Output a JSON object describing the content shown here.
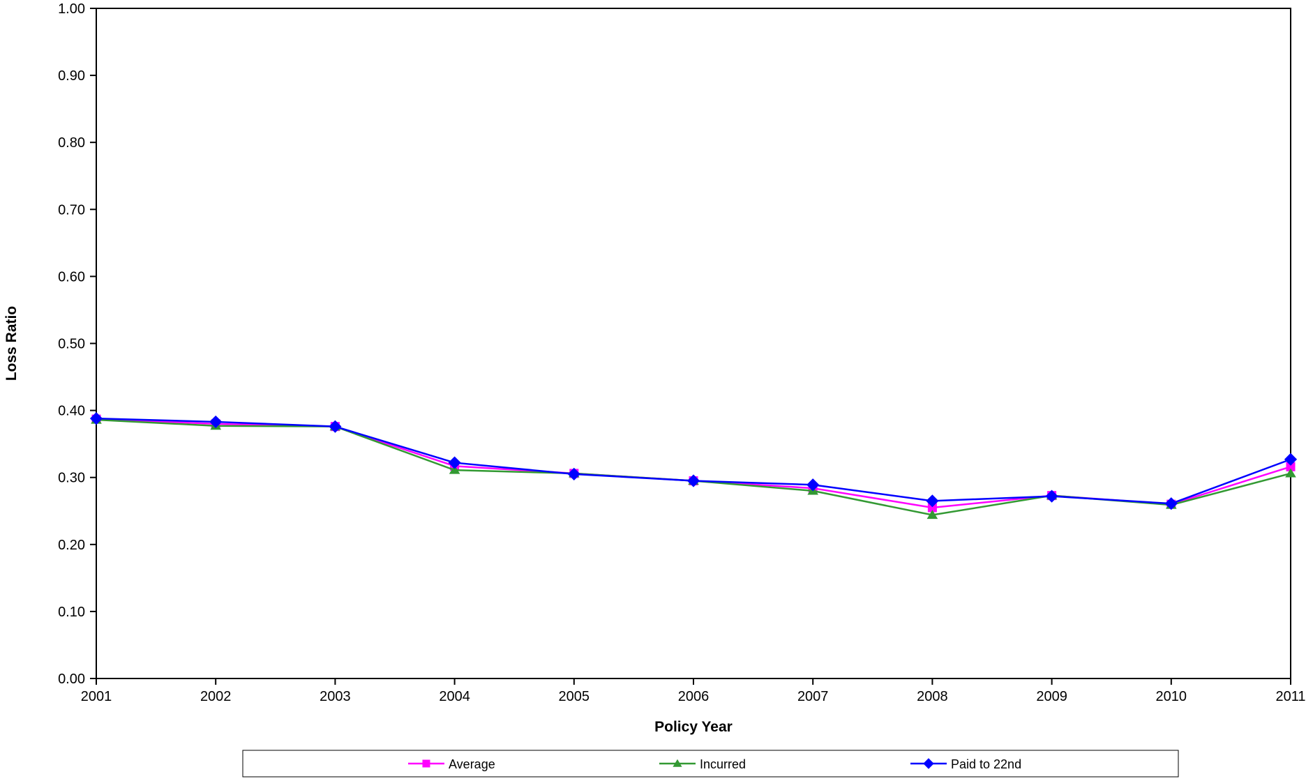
{
  "chart_data": {
    "type": "line",
    "title": "",
    "xlabel": "Policy Year",
    "ylabel": "Loss Ratio",
    "categories": [
      "2001",
      "2002",
      "2003",
      "2004",
      "2005",
      "2006",
      "2007",
      "2008",
      "2009",
      "2010",
      "2011"
    ],
    "ylim": [
      0,
      1
    ],
    "yticks": [
      "0.00",
      "0.10",
      "0.20",
      "0.30",
      "0.40",
      "0.50",
      "0.60",
      "0.70",
      "0.80",
      "0.90",
      "1.00"
    ],
    "grid": false,
    "legend_position": "bottom",
    "series": [
      {
        "name": "Average",
        "color": "#ff00ff",
        "marker": "square",
        "values": [
          0.387,
          0.38,
          0.376,
          0.317,
          0.306,
          0.295,
          0.284,
          0.255,
          0.273,
          0.26,
          0.316
        ]
      },
      {
        "name": "Incurred",
        "color": "#339933",
        "marker": "triangle",
        "values": [
          0.386,
          0.377,
          0.376,
          0.311,
          0.306,
          0.295,
          0.28,
          0.244,
          0.273,
          0.259,
          0.306
        ]
      },
      {
        "name": "Paid to 22nd",
        "color": "#0000ff",
        "marker": "diamond",
        "values": [
          0.388,
          0.383,
          0.376,
          0.322,
          0.305,
          0.295,
          0.289,
          0.265,
          0.272,
          0.261,
          0.327
        ]
      }
    ]
  }
}
